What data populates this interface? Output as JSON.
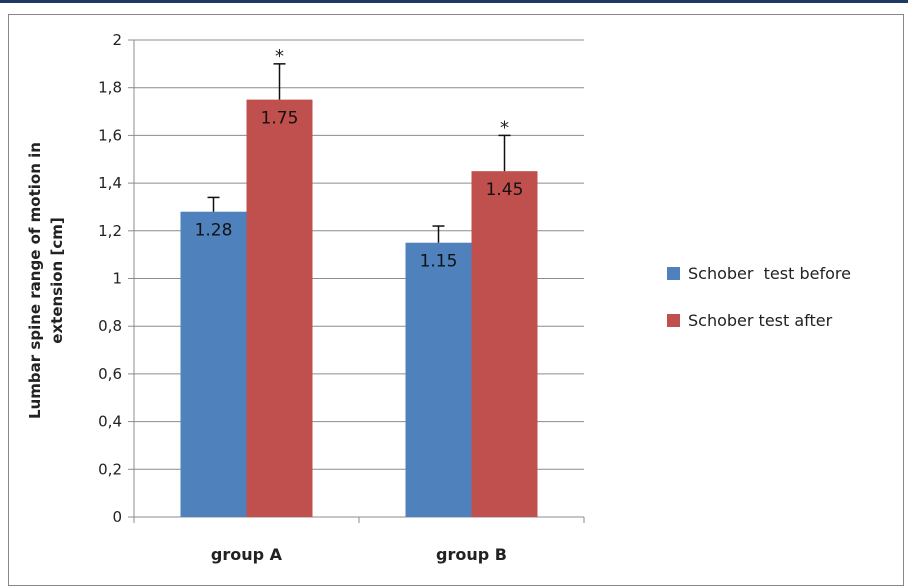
{
  "chart_data": {
    "type": "bar",
    "categories": [
      "group A",
      "group B"
    ],
    "series": [
      {
        "name": "Schober  test before",
        "values": [
          1.28,
          1.15
        ],
        "errors": [
          0.06,
          0.07
        ],
        "color": "#4f81bd",
        "labels": [
          "1.28",
          "1.15"
        ],
        "markers": [
          "",
          ""
        ]
      },
      {
        "name": "Schober test after",
        "values": [
          1.75,
          1.45
        ],
        "errors": [
          0.15,
          0.15
        ],
        "color": "#c0504d",
        "labels": [
          "1.75",
          "1.45"
        ],
        "markers": [
          "*",
          "*"
        ]
      }
    ],
    "ylabel_lines": [
      "Lumbar spine range of motion in",
      "extension [cm]"
    ],
    "ylim": [
      0,
      2
    ],
    "yticks": [
      0,
      0.2,
      0.4,
      0.6,
      0.8,
      1,
      1.2,
      1.4,
      1.6,
      1.8,
      2
    ],
    "ytick_labels": [
      "0",
      "0,2",
      "0,4",
      "0,6",
      "0,8",
      "1",
      "1,2",
      "1,4",
      "1,6",
      "1,8",
      "2"
    ],
    "grid": true,
    "legend": "right"
  }
}
